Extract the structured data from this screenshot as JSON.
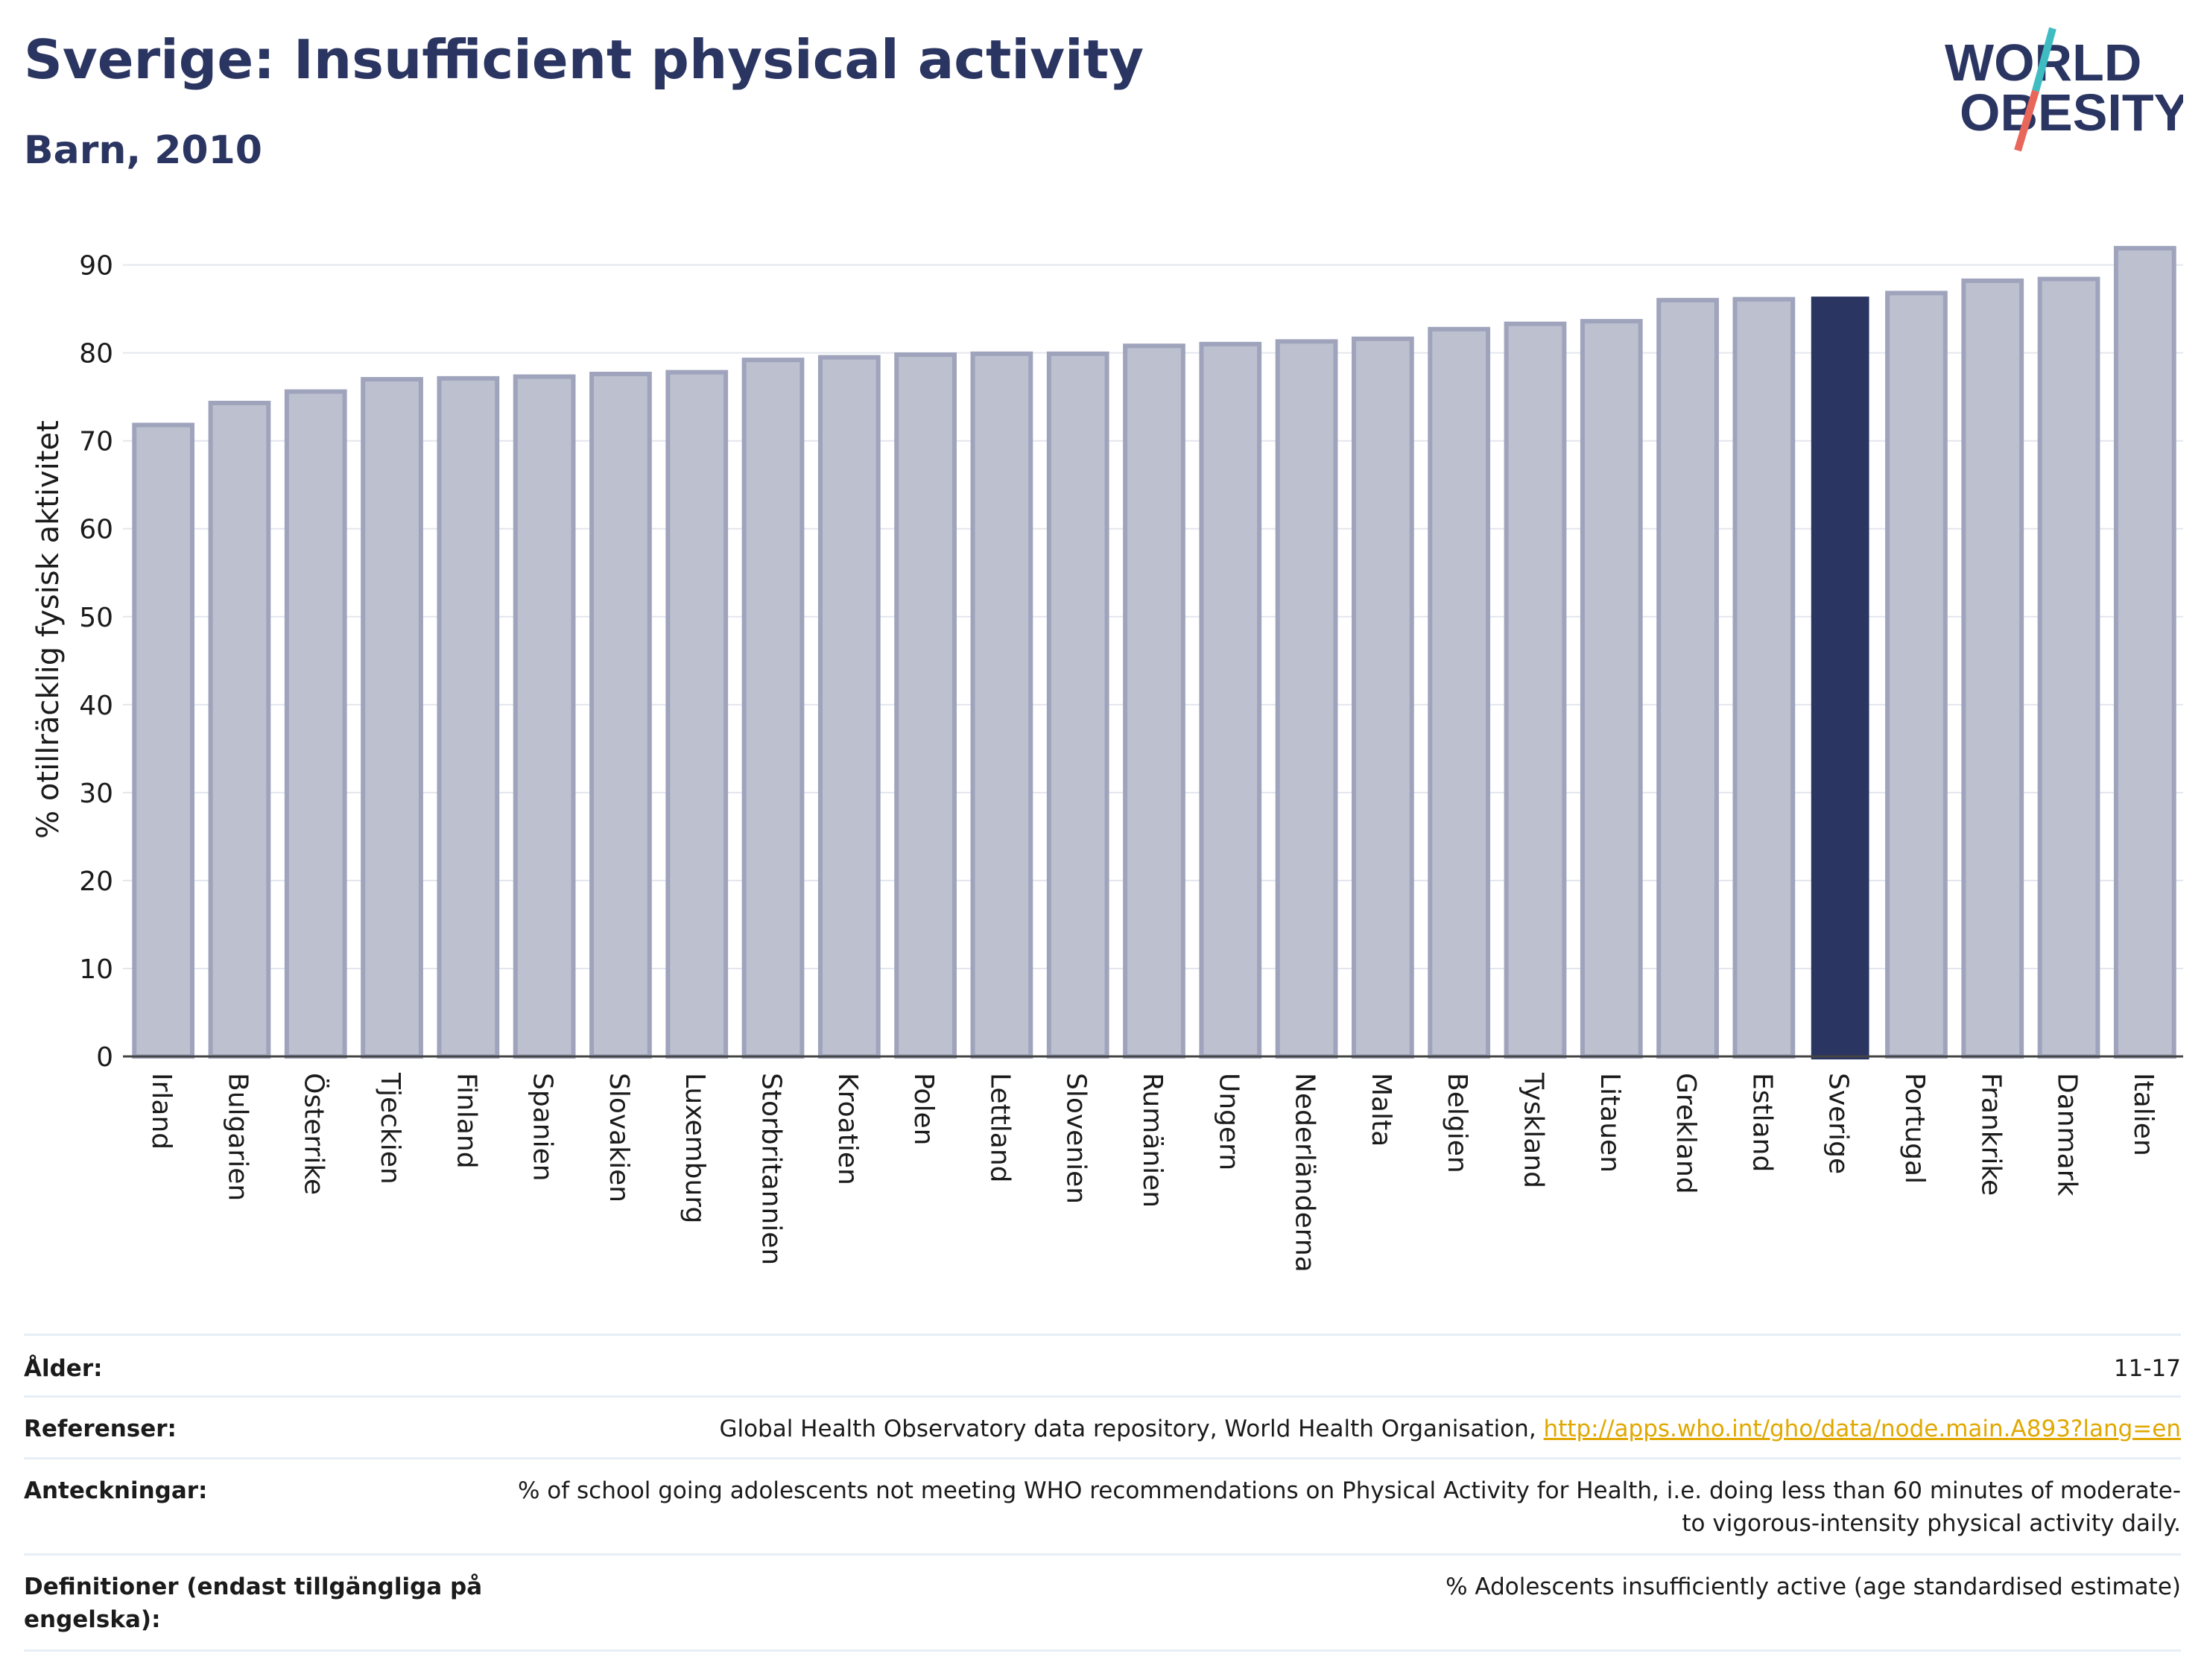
{
  "header": {
    "title": "Sverige: Insufficient physical activity",
    "subtitle": "Barn, 2010"
  },
  "logo": {
    "line1": "WORLD",
    "line2": "OBESITY"
  },
  "colors": {
    "title": "#2b3561",
    "bar_default_fill": "#bcc0cf",
    "bar_default_stroke": "#9fa4bc",
    "bar_highlight": "#2b3561",
    "logo_slash_teal": "#3fbcc2",
    "logo_slash_red": "#e8665a"
  },
  "chart_data": {
    "type": "bar",
    "title": "Sverige: Insufficient physical activity",
    "subtitle": "Barn, 2010",
    "xlabel": "",
    "ylabel": "% otillräcklig fysisk aktivitet",
    "ylim": [
      0,
      92
    ],
    "yticks": [
      0,
      10,
      20,
      30,
      40,
      50,
      60,
      70,
      80,
      90
    ],
    "grid": true,
    "highlight": "Sverige",
    "categories": [
      "Irland",
      "Bulgarien",
      "Österrike",
      "Tjeckien",
      "Finland",
      "Spanien",
      "Slovakien",
      "Luxemburg",
      "Storbritannien",
      "Kroatien",
      "Polen",
      "Lettland",
      "Slovenien",
      "Rumänien",
      "Ungern",
      "Nederländerna",
      "Malta",
      "Belgien",
      "Tyskland",
      "Litauen",
      "Grekland",
      "Estland",
      "Sverige",
      "Portugal",
      "Frankrike",
      "Danmark",
      "Italien"
    ],
    "values": [
      71.8,
      74.3,
      75.6,
      77.0,
      77.1,
      77.3,
      77.6,
      77.8,
      79.2,
      79.5,
      79.8,
      79.9,
      79.9,
      80.8,
      81.0,
      81.3,
      81.6,
      82.7,
      83.3,
      83.6,
      86.0,
      86.1,
      86.4,
      86.8,
      88.2,
      88.4,
      91.9
    ]
  },
  "meta": {
    "rows": [
      {
        "label": "Ålder:",
        "value": "11-17"
      },
      {
        "label": "Referenser:",
        "value": "Global Health Observatory data repository, World Health Organisation, ",
        "link": "http://apps.who.int/gho/data/node.main.A893?lang=en"
      },
      {
        "label": "Anteckningar:",
        "value": "% of school going adolescents not meeting WHO recommendations on Physical Activity for Health, i.e. doing less than 60 minutes of moderate- to vigorous-intensity physical activity daily."
      },
      {
        "label": "Definitioner (endast tillgängliga på engelska):",
        "value": "% Adolescents insufficiently active (age standardised estimate)"
      }
    ]
  }
}
